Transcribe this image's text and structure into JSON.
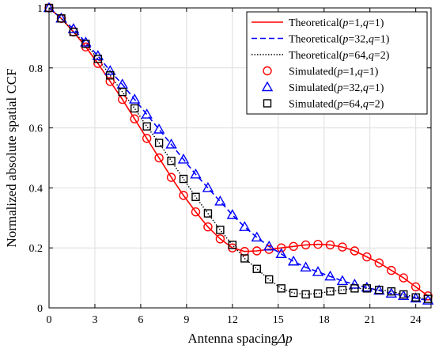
{
  "chart_data": {
    "type": "line",
    "xlabel": "Antenna spacingΔp",
    "ylabel": "Normalized absolute spatial CCF",
    "xlim": [
      0,
      25
    ],
    "ylim": [
      0,
      1
    ],
    "xticks": [
      0,
      3,
      6,
      9,
      12,
      15,
      18,
      21,
      24
    ],
    "yticks": [
      0,
      0.2,
      0.4,
      0.6,
      0.8,
      1
    ],
    "xtick_labels": [
      "0",
      "3",
      "6",
      "9",
      "12",
      "15",
      "18",
      "21",
      "24"
    ],
    "ytick_labels": [
      "0",
      "0.2",
      "0.4",
      "0.6",
      "0.8",
      "1"
    ],
    "grid": true,
    "legend_position": "top-right",
    "series": [
      {
        "name": "Theoretical(p=1,q=1)",
        "kind": "line",
        "style": "solid",
        "color": "#ff0000",
        "x": [
          0,
          0.8,
          1.6,
          2.4,
          3.2,
          4.0,
          4.8,
          5.6,
          6.4,
          7.2,
          8.0,
          8.8,
          9.6,
          10.4,
          11.2,
          12.0,
          12.8,
          13.6,
          14.4,
          15.2,
          16.0,
          16.8,
          17.6,
          18.4,
          19.2,
          20.0,
          20.8,
          21.6,
          22.4,
          23.2,
          24.0,
          24.8
        ],
        "y": [
          1.0,
          0.965,
          0.92,
          0.87,
          0.815,
          0.755,
          0.695,
          0.63,
          0.565,
          0.5,
          0.435,
          0.375,
          0.32,
          0.27,
          0.23,
          0.2,
          0.188,
          0.19,
          0.195,
          0.2,
          0.205,
          0.21,
          0.212,
          0.21,
          0.203,
          0.19,
          0.17,
          0.15,
          0.125,
          0.1,
          0.07,
          0.04
        ]
      },
      {
        "name": "Theoretical(p=32,q=1)",
        "kind": "line",
        "style": "dashed",
        "color": "#0000ff",
        "x": [
          0,
          0.8,
          1.6,
          2.4,
          3.2,
          4.0,
          4.8,
          5.6,
          6.4,
          7.2,
          8.0,
          8.8,
          9.6,
          10.4,
          11.2,
          12.0,
          12.8,
          13.6,
          14.4,
          15.2,
          16.0,
          16.8,
          17.6,
          18.4,
          19.2,
          20.0,
          20.8,
          21.6,
          22.4,
          23.2,
          24.0,
          24.8
        ],
        "y": [
          1.0,
          0.965,
          0.93,
          0.885,
          0.84,
          0.79,
          0.745,
          0.695,
          0.645,
          0.595,
          0.545,
          0.495,
          0.445,
          0.4,
          0.355,
          0.31,
          0.27,
          0.235,
          0.205,
          0.18,
          0.155,
          0.135,
          0.12,
          0.105,
          0.09,
          0.078,
          0.068,
          0.058,
          0.048,
          0.04,
          0.032,
          0.025
        ]
      },
      {
        "name": "Theoretical(p=64,q=2)",
        "kind": "line",
        "style": "dotted",
        "color": "#000000",
        "x": [
          0,
          0.8,
          1.6,
          2.4,
          3.2,
          4.0,
          4.8,
          5.6,
          6.4,
          7.2,
          8.0,
          8.8,
          9.6,
          10.4,
          11.2,
          12.0,
          12.8,
          13.6,
          14.4,
          15.2,
          16.0,
          16.8,
          17.6,
          18.4,
          19.2,
          20.0,
          20.8,
          21.6,
          22.4,
          23.2,
          24.0,
          24.8
        ],
        "y": [
          1.0,
          0.965,
          0.92,
          0.88,
          0.83,
          0.775,
          0.72,
          0.665,
          0.605,
          0.55,
          0.49,
          0.43,
          0.37,
          0.315,
          0.26,
          0.21,
          0.165,
          0.13,
          0.095,
          0.065,
          0.05,
          0.045,
          0.048,
          0.055,
          0.06,
          0.065,
          0.065,
          0.06,
          0.055,
          0.045,
          0.035,
          0.03
        ]
      },
      {
        "name": "Simulated(p=1,q=1)",
        "kind": "marker",
        "marker": "circle",
        "color": "#ff0000",
        "x": [
          0,
          0.8,
          1.6,
          2.4,
          3.2,
          4.0,
          4.8,
          5.6,
          6.4,
          7.2,
          8.0,
          8.8,
          9.6,
          10.4,
          11.2,
          12.0,
          12.8,
          13.6,
          14.4,
          15.2,
          16.0,
          16.8,
          17.6,
          18.4,
          19.2,
          20.0,
          20.8,
          21.6,
          22.4,
          23.2,
          24.0,
          24.8
        ],
        "y": [
          1.0,
          0.965,
          0.92,
          0.87,
          0.815,
          0.755,
          0.695,
          0.63,
          0.565,
          0.5,
          0.435,
          0.375,
          0.32,
          0.27,
          0.23,
          0.2,
          0.188,
          0.19,
          0.195,
          0.2,
          0.205,
          0.21,
          0.212,
          0.21,
          0.203,
          0.19,
          0.17,
          0.15,
          0.125,
          0.1,
          0.07,
          0.04
        ]
      },
      {
        "name": "Simulated(p=32,q=1)",
        "kind": "marker",
        "marker": "triangle",
        "color": "#0000ff",
        "x": [
          0,
          0.8,
          1.6,
          2.4,
          3.2,
          4.0,
          4.8,
          5.6,
          6.4,
          7.2,
          8.0,
          8.8,
          9.6,
          10.4,
          11.2,
          12.0,
          12.8,
          13.6,
          14.4,
          15.2,
          16.0,
          16.8,
          17.6,
          18.4,
          19.2,
          20.0,
          20.8,
          21.6,
          22.4,
          23.2,
          24.0,
          24.8
        ],
        "y": [
          1.0,
          0.965,
          0.93,
          0.885,
          0.84,
          0.79,
          0.745,
          0.695,
          0.645,
          0.595,
          0.545,
          0.495,
          0.445,
          0.4,
          0.355,
          0.31,
          0.27,
          0.235,
          0.205,
          0.18,
          0.155,
          0.135,
          0.12,
          0.105,
          0.09,
          0.078,
          0.068,
          0.058,
          0.048,
          0.04,
          0.032,
          0.025
        ]
      },
      {
        "name": "Simulated(p=64,q=2)",
        "kind": "marker",
        "marker": "square",
        "color": "#000000",
        "x": [
          0,
          0.8,
          1.6,
          2.4,
          3.2,
          4.0,
          4.8,
          5.6,
          6.4,
          7.2,
          8.0,
          8.8,
          9.6,
          10.4,
          11.2,
          12.0,
          12.8,
          13.6,
          14.4,
          15.2,
          16.0,
          16.8,
          17.6,
          18.4,
          19.2,
          20.0,
          20.8,
          21.6,
          22.4,
          23.2,
          24.0,
          24.8
        ],
        "y": [
          1.0,
          0.965,
          0.92,
          0.88,
          0.83,
          0.775,
          0.72,
          0.665,
          0.605,
          0.55,
          0.49,
          0.43,
          0.37,
          0.315,
          0.26,
          0.21,
          0.165,
          0.13,
          0.095,
          0.065,
          0.05,
          0.045,
          0.048,
          0.055,
          0.06,
          0.065,
          0.065,
          0.06,
          0.055,
          0.045,
          0.035,
          0.03
        ]
      }
    ]
  }
}
